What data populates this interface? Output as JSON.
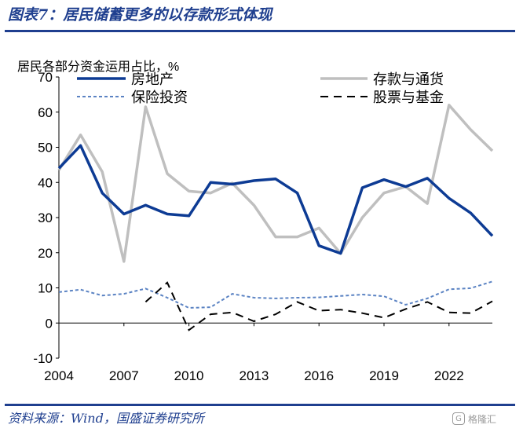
{
  "header": {
    "title": "图表7：居民储蓄更多的以存款形式体现"
  },
  "footer": {
    "source": "资料来源：Wind，国盛证券研究所"
  },
  "watermark": {
    "text": "格隆汇",
    "icon": "G"
  },
  "colors": {
    "brand": "#1f3f8f",
    "real_estate": "#0d3b94",
    "deposits": "#bfbfbf",
    "insurance": "#5b83c3",
    "stocks_funds": "#000000",
    "axis": "#000000"
  },
  "chart_data": {
    "type": "line",
    "title": "居民各部分资金运用占比，%",
    "xlabel": "",
    "ylabel": "%",
    "xlim": [
      2004,
      2024
    ],
    "ylim": [
      -10,
      70
    ],
    "yticks": [
      -10,
      0,
      10,
      20,
      30,
      40,
      50,
      60,
      70
    ],
    "xticks": [
      2004,
      2007,
      2010,
      2013,
      2016,
      2019,
      2022
    ],
    "legend_position": "top",
    "series": [
      {
        "name": "房地产",
        "style": "solid-thick",
        "x": [
          2004,
          2005,
          2006,
          2007,
          2008,
          2009,
          2010,
          2011,
          2012,
          2013,
          2014,
          2015,
          2016,
          2017,
          2018,
          2019,
          2020,
          2021,
          2022,
          2023,
          2024
        ],
        "y": [
          44,
          50.5,
          37,
          31,
          33.5,
          31,
          30.5,
          40,
          39.5,
          40.5,
          41,
          37,
          22,
          19.8,
          38.5,
          40.8,
          38.8,
          41.2,
          35.5,
          31.3,
          24.8
        ]
      },
      {
        "name": "存款与通货",
        "style": "solid-gray",
        "x": [
          2004,
          2005,
          2006,
          2007,
          2008,
          2009,
          2010,
          2011,
          2012,
          2013,
          2014,
          2015,
          2016,
          2017,
          2018,
          2019,
          2020,
          2021,
          2022,
          2023,
          2024
        ],
        "y": [
          43.5,
          53.5,
          43,
          17.5,
          61.5,
          42.5,
          37.5,
          37,
          39.8,
          33.5,
          24.5,
          24.5,
          27,
          19.8,
          30,
          37,
          38.8,
          34,
          62,
          55,
          49
        ]
      },
      {
        "name": "保险投资",
        "style": "dotted",
        "x": [
          2004,
          2005,
          2006,
          2007,
          2008,
          2009,
          2010,
          2011,
          2012,
          2013,
          2014,
          2015,
          2016,
          2017,
          2018,
          2019,
          2020,
          2021,
          2022,
          2023,
          2024
        ],
        "y": [
          8.8,
          9.5,
          7.8,
          8.3,
          9.8,
          7.2,
          4.3,
          4.5,
          8.3,
          7.2,
          7.0,
          7.2,
          7.3,
          7.7,
          8.1,
          7.6,
          5.2,
          7.0,
          9.6,
          9.9,
          11.8
        ]
      },
      {
        "name": "股票与基金",
        "style": "dashed",
        "x": [
          2008,
          2009,
          2010,
          2011,
          2012,
          2013,
          2014,
          2015,
          2016,
          2017,
          2018,
          2019,
          2020,
          2021,
          2022,
          2023,
          2024
        ],
        "y": [
          6,
          11.5,
          -2,
          2.5,
          3,
          0.5,
          2.5,
          6,
          3.5,
          3.8,
          2.8,
          1.5,
          4,
          6,
          3,
          2.8,
          6.2
        ]
      }
    ]
  }
}
